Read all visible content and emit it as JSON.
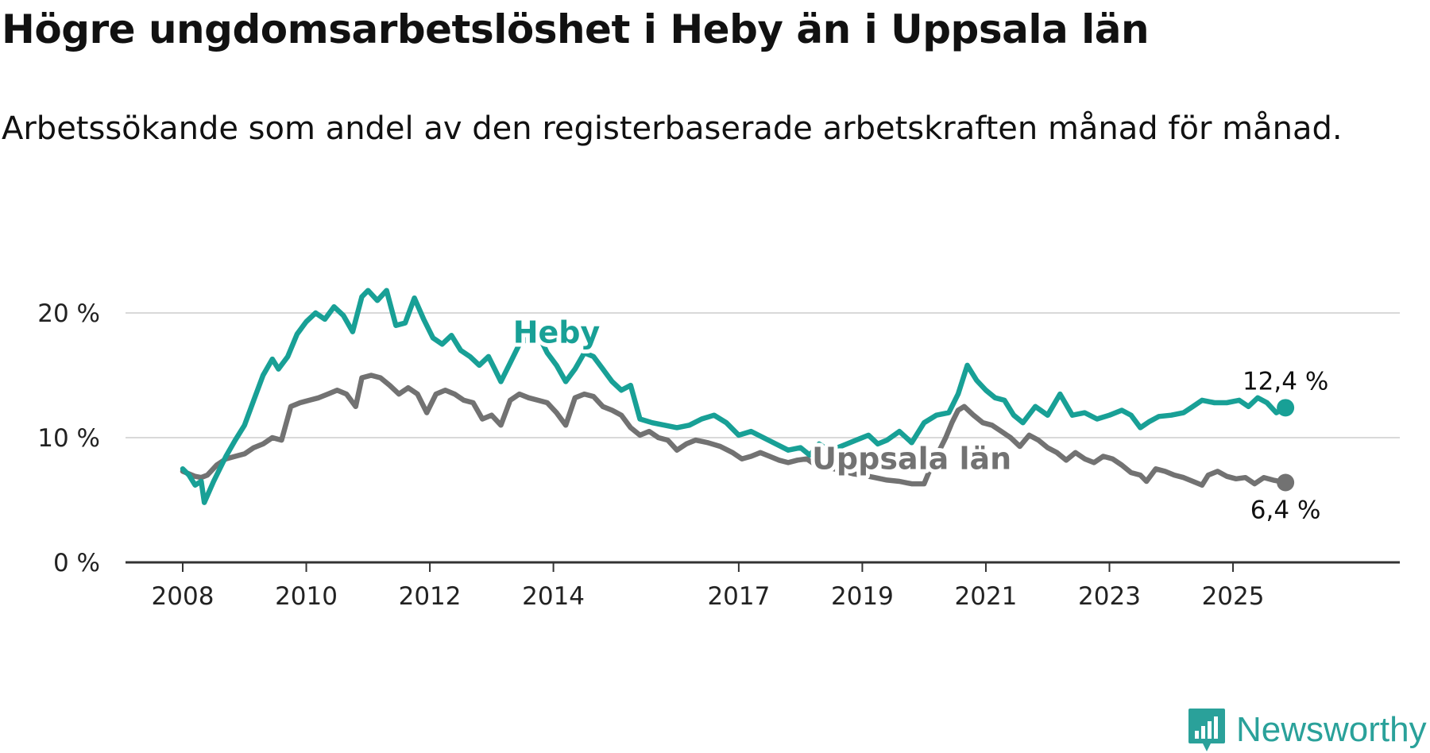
{
  "title": "Högre ungdomsarbetslöshet i Heby än i Uppsala län",
  "subtitle": "Arbetssökande som andel av den registerbaserade arbetskraften månad för månad.",
  "brand": {
    "name": "Newsworthy",
    "icon": "newsworthy-logo-icon",
    "color": "#2aa19a"
  },
  "chart_data": {
    "type": "line",
    "title": "Högre ungdomsarbetslöshet i Heby än i Uppsala län",
    "xlabel": "",
    "ylabel": "",
    "xlim": [
      2008.0,
      2026.8
    ],
    "ylim": [
      0,
      22
    ],
    "grid": true,
    "y_ticks": [
      {
        "value": 0,
        "label": "0 %"
      },
      {
        "value": 10,
        "label": "10 %"
      },
      {
        "value": 20,
        "label": "20 %"
      }
    ],
    "x_ticks": [
      {
        "value": 2008,
        "label": "2008"
      },
      {
        "value": 2010,
        "label": "2010"
      },
      {
        "value": 2012,
        "label": "2012"
      },
      {
        "value": 2014,
        "label": "2014"
      },
      {
        "value": 2017,
        "label": "2017"
      },
      {
        "value": 2019,
        "label": "2019"
      },
      {
        "value": 2021,
        "label": "2021"
      },
      {
        "value": 2023,
        "label": "2023"
      },
      {
        "value": 2025,
        "label": "2025"
      }
    ],
    "series": [
      {
        "name": "Heby",
        "color": "#18a096",
        "end_label": "12,4 %",
        "end_value": 12.4,
        "points": [
          [
            2008.0,
            7.5
          ],
          [
            2008.1,
            7.0
          ],
          [
            2008.2,
            6.2
          ],
          [
            2008.3,
            6.5
          ],
          [
            2008.35,
            4.8
          ],
          [
            2008.5,
            6.5
          ],
          [
            2008.7,
            8.5
          ],
          [
            2008.85,
            9.8
          ],
          [
            2009.0,
            11.0
          ],
          [
            2009.15,
            13.0
          ],
          [
            2009.3,
            15.0
          ],
          [
            2009.45,
            16.3
          ],
          [
            2009.55,
            15.5
          ],
          [
            2009.7,
            16.5
          ],
          [
            2009.85,
            18.3
          ],
          [
            2010.0,
            19.3
          ],
          [
            2010.15,
            20.0
          ],
          [
            2010.3,
            19.5
          ],
          [
            2010.45,
            20.5
          ],
          [
            2010.6,
            19.8
          ],
          [
            2010.75,
            18.5
          ],
          [
            2010.9,
            21.3
          ],
          [
            2011.0,
            21.8
          ],
          [
            2011.15,
            21.0
          ],
          [
            2011.3,
            21.8
          ],
          [
            2011.45,
            19.0
          ],
          [
            2011.6,
            19.2
          ],
          [
            2011.75,
            21.2
          ],
          [
            2011.9,
            19.5
          ],
          [
            2012.05,
            18.0
          ],
          [
            2012.2,
            17.5
          ],
          [
            2012.35,
            18.2
          ],
          [
            2012.5,
            17.0
          ],
          [
            2012.65,
            16.5
          ],
          [
            2012.8,
            15.8
          ],
          [
            2012.95,
            16.5
          ],
          [
            2013.05,
            15.5
          ],
          [
            2013.15,
            14.5
          ],
          [
            2013.3,
            16.0
          ],
          [
            2013.45,
            17.5
          ],
          [
            2013.6,
            18.0
          ],
          [
            2013.75,
            18.3
          ],
          [
            2013.9,
            16.8
          ],
          [
            2014.05,
            15.8
          ],
          [
            2014.2,
            14.5
          ],
          [
            2014.35,
            15.5
          ],
          [
            2014.5,
            16.8
          ],
          [
            2014.65,
            16.5
          ],
          [
            2014.8,
            15.5
          ],
          [
            2014.95,
            14.5
          ],
          [
            2015.1,
            13.8
          ],
          [
            2015.25,
            14.2
          ],
          [
            2015.4,
            11.5
          ],
          [
            2015.6,
            11.2
          ],
          [
            2015.8,
            11.0
          ],
          [
            2016.0,
            10.8
          ],
          [
            2016.2,
            11.0
          ],
          [
            2016.4,
            11.5
          ],
          [
            2016.6,
            11.8
          ],
          [
            2016.8,
            11.2
          ],
          [
            2017.0,
            10.2
          ],
          [
            2017.2,
            10.5
          ],
          [
            2017.4,
            10.0
          ],
          [
            2017.6,
            9.5
          ],
          [
            2017.8,
            9.0
          ],
          [
            2018.0,
            9.2
          ],
          [
            2018.15,
            8.6
          ],
          [
            2018.3,
            9.5
          ],
          [
            2018.45,
            9.0
          ],
          [
            2018.6,
            9.2
          ],
          [
            2018.75,
            9.5
          ],
          [
            2018.9,
            9.8
          ],
          [
            2019.1,
            10.2
          ],
          [
            2019.25,
            9.5
          ],
          [
            2019.4,
            9.8
          ],
          [
            2019.6,
            10.5
          ],
          [
            2019.8,
            9.6
          ],
          [
            2020.0,
            11.2
          ],
          [
            2020.2,
            11.8
          ],
          [
            2020.4,
            12.0
          ],
          [
            2020.55,
            13.5
          ],
          [
            2020.7,
            15.8
          ],
          [
            2020.85,
            14.6
          ],
          [
            2021.0,
            13.8
          ],
          [
            2021.15,
            13.2
          ],
          [
            2021.3,
            13.0
          ],
          [
            2021.45,
            11.8
          ],
          [
            2021.6,
            11.2
          ],
          [
            2021.8,
            12.5
          ],
          [
            2022.0,
            11.8
          ],
          [
            2022.2,
            13.5
          ],
          [
            2022.4,
            11.8
          ],
          [
            2022.6,
            12.0
          ],
          [
            2022.8,
            11.5
          ],
          [
            2023.0,
            11.8
          ],
          [
            2023.2,
            12.2
          ],
          [
            2023.35,
            11.8
          ],
          [
            2023.5,
            10.8
          ],
          [
            2023.65,
            11.3
          ],
          [
            2023.8,
            11.7
          ],
          [
            2024.0,
            11.8
          ],
          [
            2024.2,
            12.0
          ],
          [
            2024.35,
            12.5
          ],
          [
            2024.5,
            13.0
          ],
          [
            2024.7,
            12.8
          ],
          [
            2024.9,
            12.8
          ],
          [
            2025.1,
            13.0
          ],
          [
            2025.25,
            12.5
          ],
          [
            2025.4,
            13.2
          ],
          [
            2025.55,
            12.8
          ],
          [
            2025.7,
            12.0
          ],
          [
            2025.85,
            12.4
          ]
        ]
      },
      {
        "name": "Uppsala län",
        "color": "#727272",
        "end_label": "6,4 %",
        "end_value": 6.4,
        "points": [
          [
            2008.0,
            7.3
          ],
          [
            2008.1,
            7.1
          ],
          [
            2008.2,
            6.9
          ],
          [
            2008.3,
            6.8
          ],
          [
            2008.4,
            7.0
          ],
          [
            2008.55,
            7.8
          ],
          [
            2008.7,
            8.3
          ],
          [
            2008.85,
            8.5
          ],
          [
            2009.0,
            8.7
          ],
          [
            2009.15,
            9.2
          ],
          [
            2009.3,
            9.5
          ],
          [
            2009.45,
            10.0
          ],
          [
            2009.6,
            9.8
          ],
          [
            2009.75,
            12.5
          ],
          [
            2009.9,
            12.8
          ],
          [
            2010.05,
            13.0
          ],
          [
            2010.2,
            13.2
          ],
          [
            2010.35,
            13.5
          ],
          [
            2010.5,
            13.8
          ],
          [
            2010.65,
            13.5
          ],
          [
            2010.8,
            12.5
          ],
          [
            2010.9,
            14.8
          ],
          [
            2011.05,
            15.0
          ],
          [
            2011.2,
            14.8
          ],
          [
            2011.35,
            14.2
          ],
          [
            2011.5,
            13.5
          ],
          [
            2011.65,
            14.0
          ],
          [
            2011.8,
            13.5
          ],
          [
            2011.95,
            12.0
          ],
          [
            2012.1,
            13.5
          ],
          [
            2012.25,
            13.8
          ],
          [
            2012.4,
            13.5
          ],
          [
            2012.55,
            13.0
          ],
          [
            2012.7,
            12.8
          ],
          [
            2012.85,
            11.5
          ],
          [
            2013.0,
            11.8
          ],
          [
            2013.15,
            11.0
          ],
          [
            2013.3,
            13.0
          ],
          [
            2013.45,
            13.5
          ],
          [
            2013.6,
            13.2
          ],
          [
            2013.75,
            13.0
          ],
          [
            2013.9,
            12.8
          ],
          [
            2014.05,
            12.0
          ],
          [
            2014.2,
            11.0
          ],
          [
            2014.35,
            13.2
          ],
          [
            2014.5,
            13.5
          ],
          [
            2014.65,
            13.3
          ],
          [
            2014.8,
            12.5
          ],
          [
            2014.95,
            12.2
          ],
          [
            2015.1,
            11.8
          ],
          [
            2015.25,
            10.8
          ],
          [
            2015.4,
            10.2
          ],
          [
            2015.55,
            10.5
          ],
          [
            2015.7,
            10.0
          ],
          [
            2015.85,
            9.8
          ],
          [
            2016.0,
            9.0
          ],
          [
            2016.15,
            9.5
          ],
          [
            2016.3,
            9.8
          ],
          [
            2016.5,
            9.6
          ],
          [
            2016.7,
            9.3
          ],
          [
            2016.9,
            8.8
          ],
          [
            2017.05,
            8.3
          ],
          [
            2017.2,
            8.5
          ],
          [
            2017.35,
            8.8
          ],
          [
            2017.5,
            8.5
          ],
          [
            2017.65,
            8.2
          ],
          [
            2017.8,
            8.0
          ],
          [
            2017.95,
            8.2
          ],
          [
            2018.1,
            8.3
          ],
          [
            2018.25,
            7.8
          ],
          [
            2018.4,
            7.6
          ],
          [
            2018.55,
            7.5
          ],
          [
            2018.7,
            7.3
          ],
          [
            2018.85,
            7.1
          ],
          [
            2019.0,
            7.0
          ],
          [
            2019.2,
            6.8
          ],
          [
            2019.4,
            6.6
          ],
          [
            2019.6,
            6.5
          ],
          [
            2019.8,
            6.3
          ],
          [
            2020.0,
            6.3
          ],
          [
            2020.1,
            7.5
          ],
          [
            2020.25,
            9.0
          ],
          [
            2020.35,
            10.0
          ],
          [
            2020.45,
            11.2
          ],
          [
            2020.55,
            12.2
          ],
          [
            2020.65,
            12.5
          ],
          [
            2020.8,
            11.8
          ],
          [
            2020.95,
            11.2
          ],
          [
            2021.1,
            11.0
          ],
          [
            2021.25,
            10.5
          ],
          [
            2021.4,
            10.0
          ],
          [
            2021.55,
            9.3
          ],
          [
            2021.7,
            10.2
          ],
          [
            2021.85,
            9.8
          ],
          [
            2022.0,
            9.2
          ],
          [
            2022.15,
            8.8
          ],
          [
            2022.3,
            8.2
          ],
          [
            2022.45,
            8.8
          ],
          [
            2022.6,
            8.3
          ],
          [
            2022.75,
            8.0
          ],
          [
            2022.9,
            8.5
          ],
          [
            2023.05,
            8.3
          ],
          [
            2023.2,
            7.8
          ],
          [
            2023.35,
            7.2
          ],
          [
            2023.5,
            7.0
          ],
          [
            2023.6,
            6.5
          ],
          [
            2023.75,
            7.5
          ],
          [
            2023.9,
            7.3
          ],
          [
            2024.05,
            7.0
          ],
          [
            2024.2,
            6.8
          ],
          [
            2024.35,
            6.5
          ],
          [
            2024.5,
            6.2
          ],
          [
            2024.6,
            7.0
          ],
          [
            2024.75,
            7.3
          ],
          [
            2024.9,
            6.9
          ],
          [
            2025.05,
            6.7
          ],
          [
            2025.2,
            6.8
          ],
          [
            2025.35,
            6.3
          ],
          [
            2025.5,
            6.8
          ],
          [
            2025.65,
            6.6
          ],
          [
            2025.85,
            6.4
          ]
        ]
      }
    ],
    "annotations": [
      {
        "text": "Heby",
        "series": "Heby"
      },
      {
        "text": "Uppsala län",
        "series": "Uppsala län"
      }
    ]
  }
}
